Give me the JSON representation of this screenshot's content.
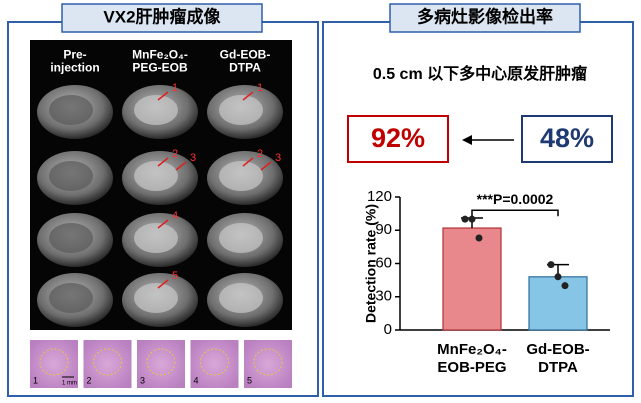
{
  "left_panel": {
    "title": "VX2肝肿瘤成像",
    "column_headers": [
      "Pre-injection",
      "MnFe₂O₄-PEG-EOB",
      "Gd-EOB-DTPA"
    ],
    "mri_cells": [
      [
        [],
        [
          "1"
        ],
        [
          "1"
        ]
      ],
      [
        [],
        [
          "2",
          "3"
        ],
        [
          "2",
          "3"
        ]
      ],
      [
        [],
        [
          "4"
        ],
        []
      ],
      [
        [],
        [
          "5"
        ],
        []
      ]
    ],
    "histology_labels": [
      "1",
      "2",
      "3",
      "4",
      "5"
    ],
    "scale_bar": "1 mm"
  },
  "right_panel": {
    "title": "多病灶影像检出率",
    "subtitle": "0.5 cm 以下多中心原发肝肿瘤",
    "callouts": [
      "92%",
      "48%"
    ]
  },
  "chart_data": {
    "type": "bar",
    "y_label": "Detection rate (%)",
    "categories": [
      "MnFe₂O₄-EOB-PEG",
      "Gd-EOB-DTPA"
    ],
    "values": [
      92,
      48
    ],
    "errors": [
      9,
      11
    ],
    "points": [
      [
        100,
        100,
        83
      ],
      [
        59,
        48,
        40
      ]
    ],
    "colors": [
      "#e9888c",
      "#86c5e6"
    ],
    "edge_colors": [
      "#b03038",
      "#2c6e9a"
    ],
    "annotation": "***P=0.0002",
    "ylim": [
      0,
      120
    ],
    "yticks": [
      0,
      30,
      60,
      90,
      120
    ]
  }
}
